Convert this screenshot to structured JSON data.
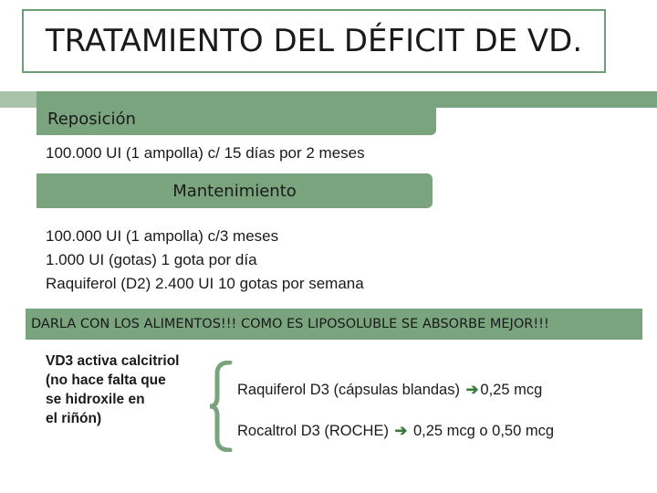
{
  "title": "TRATAMIENTO DEL DÉFICIT DE VD.",
  "reposicion": {
    "label": "Reposición",
    "line": "100.000 UI (1 ampolla)  c/ 15 días por 2 meses"
  },
  "mantenimiento": {
    "label": "Mantenimiento",
    "lines": [
      "100.000 UI (1 ampolla) c/3 meses",
      "1.000 UI (gotas)  1 gota por día",
      "Raquiferol (D2) 2.400 UI  10 gotas por semana"
    ]
  },
  "banner": "DARLA CON LOS ALIMENTOS!!! COMO ES LIPOSOLUBLE SE ABSORBE MEJOR!!!",
  "vd3_note": [
    "VD3 activa calcitriol",
    "(no hace falta que",
    "se hidroxile en",
    "el riñón)"
  ],
  "options": [
    {
      "name": "Raquiferol D3 (cápsulas blandas) ",
      "dose": "0,25 mcg"
    },
    {
      "name": "Rocaltrol D3 (ROCHE) ",
      "dose": " 0,25 mcg o 0,50 mcg"
    }
  ],
  "colors": {
    "accent": "#7aa47e",
    "arrow": "#3a7a3a"
  },
  "icons": {
    "arrow": "right-arrow-icon",
    "brace": "left-brace-icon"
  }
}
